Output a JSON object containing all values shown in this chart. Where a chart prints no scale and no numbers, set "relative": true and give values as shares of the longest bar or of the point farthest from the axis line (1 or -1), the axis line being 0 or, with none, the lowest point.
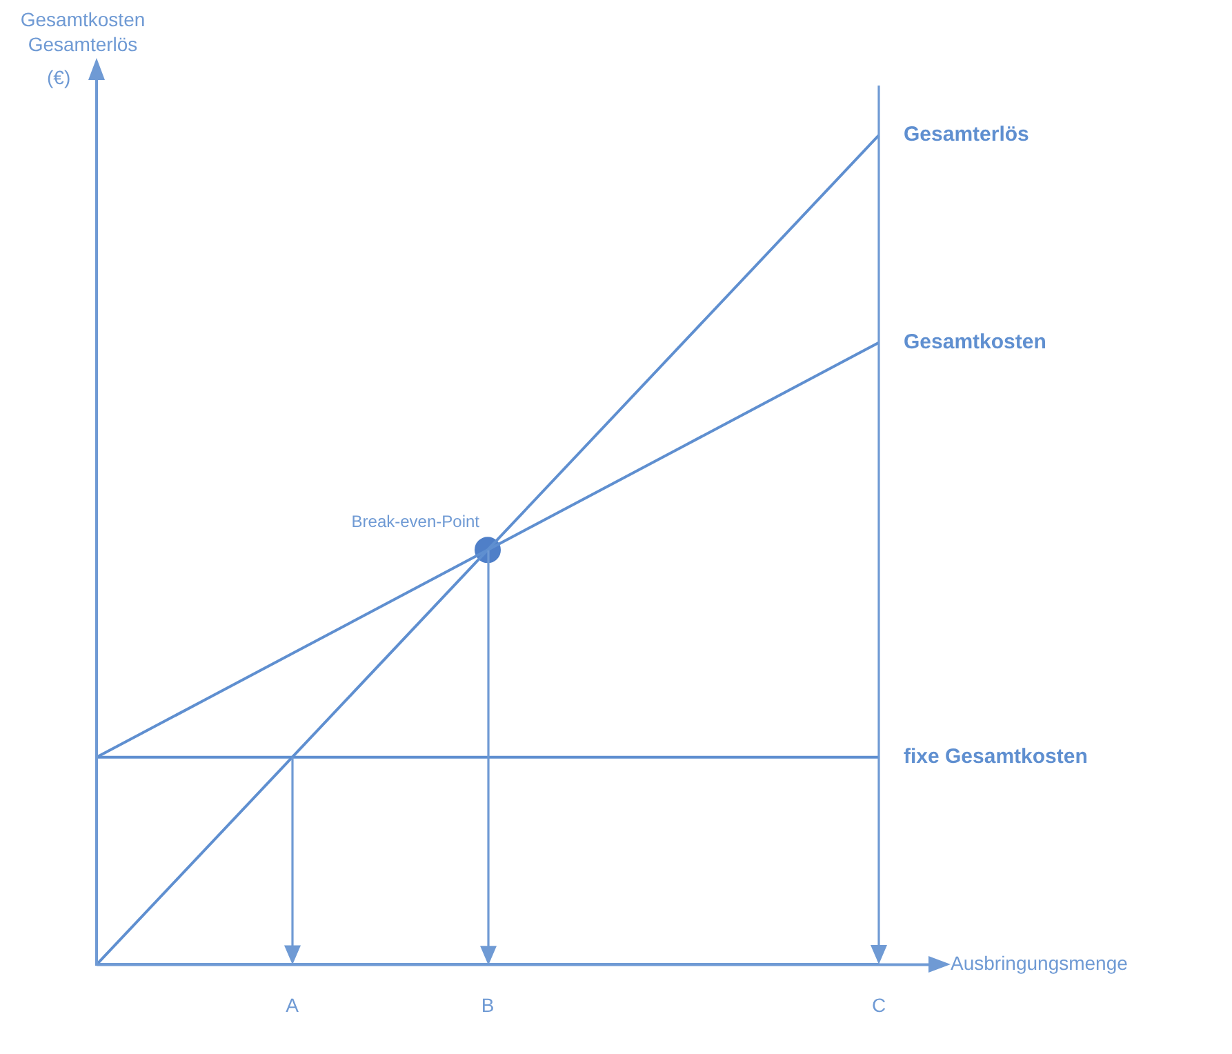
{
  "chart_data": {
    "type": "line",
    "relative": true,
    "xlabel": "Ausbringungsmenge",
    "ylabel": "Gesamtkosten\nGesamterlös\n(€)",
    "categories": [
      null,
      "A",
      "B",
      null,
      "C"
    ],
    "tick_labels": "x",
    "grid": false,
    "legend": false,
    "marker": "none",
    "line_style": "solid",
    "series": [
      {
        "name": "Gesamterlös",
        "color": "#5f8fd0",
        "values": [
          0,
          0.25,
          0.5,
          0.75,
          1
        ]
      },
      {
        "name": "Gesamtkosten",
        "color": "#5f8fd0",
        "values": [
          0.25,
          0.375,
          0.5,
          0.625,
          0.75
        ]
      },
      {
        "name": "fixe Gesamtkosten",
        "color": "#5f8fd0",
        "values": [
          0.25,
          0.25,
          0.25,
          0.25,
          0.25
        ]
      },
      {
        "type": "scatter",
        "marker": "circle",
        "color": "#4f7fc8",
        "x": [
          "B"
        ],
        "values": [
          0.5
        ]
      }
    ],
    "ref_lines": [
      {
        "axis": "x",
        "value": "C",
        "color": "#6f9ad4"
      }
    ],
    "annotations": [
      {
        "text": "Break-even-Point",
        "x": "B",
        "y": 0.5
      }
    ]
  }
}
